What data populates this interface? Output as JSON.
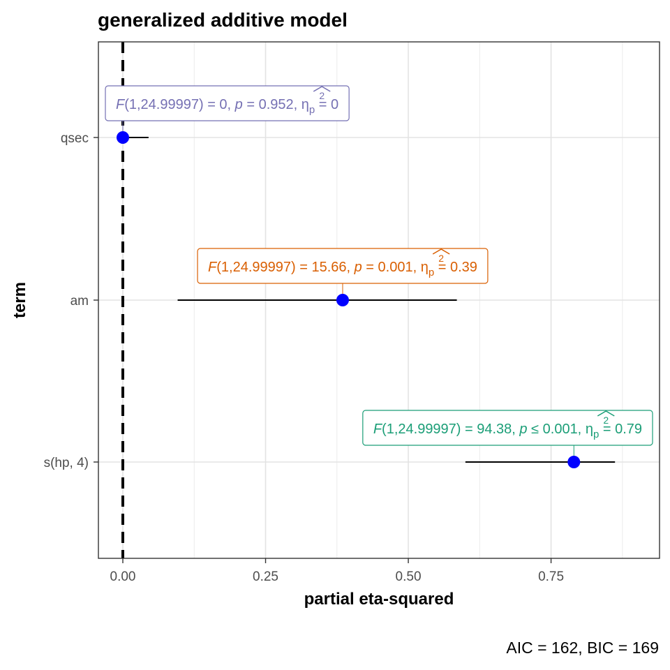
{
  "chart_data": {
    "type": "scatter",
    "title": "generalized additive model",
    "xlabel": "partial eta-squared",
    "ylabel": "term",
    "caption": "AIC = 162, BIC = 169",
    "xlim": [
      -0.01,
      0.9
    ],
    "x_ticks": [
      0,
      0.25,
      0.5,
      0.75
    ],
    "x_tick_labels": [
      "0.00",
      "0.25",
      "0.50",
      "0.75"
    ],
    "grid": true,
    "reference_line": {
      "x": 0,
      "style": "dashed",
      "color": "#000000"
    },
    "point_color": "#0000ff",
    "terms": [
      {
        "term": "qsec",
        "estimate": 0.0,
        "ci_low": 0.0,
        "ci_high": 0.045,
        "color": "#7570b3",
        "label": {
          "F_stat": "F(1,24.99997) = 0",
          "p": "p = 0.952",
          "eta": "= 0"
        }
      },
      {
        "term": "am",
        "estimate": 0.385,
        "ci_low": 0.096,
        "ci_high": 0.585,
        "color": "#d95f02",
        "label": {
          "F_stat": "F(1,24.99997) = 15.66",
          "p": "p = 0.001",
          "eta": "= 0.39"
        }
      },
      {
        "term": "s(hp, 4)",
        "estimate": 0.79,
        "ci_low": 0.6,
        "ci_high": 0.862,
        "color": "#1b9e77",
        "label": {
          "F_stat": "F(1,24.99997) = 94.38",
          "p": "p ≤ 0.001",
          "eta": "= 0.79"
        }
      }
    ]
  }
}
